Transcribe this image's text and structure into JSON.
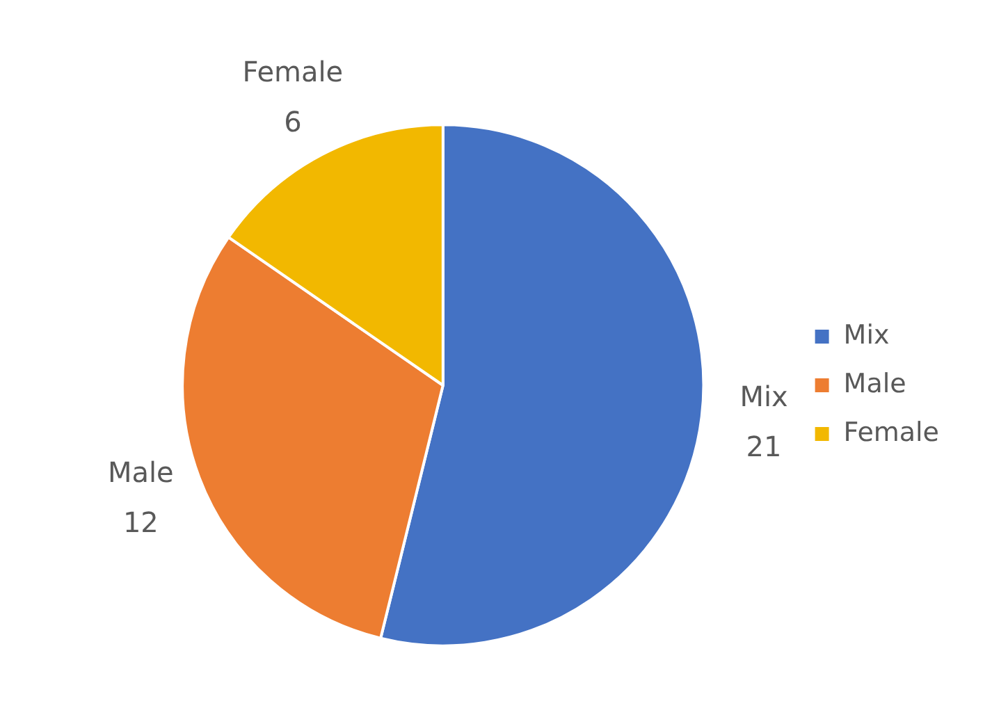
{
  "chart_data": {
    "type": "pie",
    "categories": [
      "Mix",
      "Male",
      "Female"
    ],
    "values": [
      21,
      12,
      6
    ],
    "colors": [
      "#4472c4",
      "#ed7d31",
      "#f2b800"
    ],
    "data_labels": true,
    "legend": "right"
  }
}
